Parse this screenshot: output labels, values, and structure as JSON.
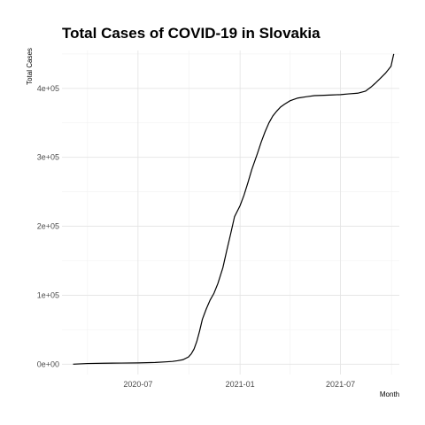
{
  "chart_data": {
    "type": "line",
    "title": "Total Cases of COVID-19 in Slovakia",
    "xlabel": "Month",
    "ylabel": "Total Cases",
    "x_type": "date",
    "xlim": [
      "2020-02-15",
      "2021-10-15"
    ],
    "ylim": [
      -15000,
      455000
    ],
    "x_ticks": [
      {
        "value": "2020-07-01",
        "label": "2020-07"
      },
      {
        "value": "2021-01-01",
        "label": "2021-01"
      },
      {
        "value": "2021-07-01",
        "label": "2021-07"
      }
    ],
    "x_minor_ticks": [
      "2020-04-01",
      "2020-10-01",
      "2021-04-01",
      "2021-10-01"
    ],
    "y_ticks": [
      {
        "value": 0,
        "label": "0e+00"
      },
      {
        "value": 100000,
        "label": "1e+05"
      },
      {
        "value": 200000,
        "label": "2e+05"
      },
      {
        "value": 300000,
        "label": "3e+05"
      },
      {
        "value": 400000,
        "label": "4e+05"
      }
    ],
    "y_minor_ticks": [
      50000,
      150000,
      250000,
      350000,
      450000
    ],
    "grid": true,
    "legend": "none",
    "series": [
      {
        "color": "#000000",
        "x": [
          "2020-03-06",
          "2020-04-01",
          "2020-05-01",
          "2020-06-01",
          "2020-07-01",
          "2020-08-01",
          "2020-08-20",
          "2020-09-01",
          "2020-09-10",
          "2020-09-20",
          "2020-09-30",
          "2020-10-05",
          "2020-10-10",
          "2020-10-15",
          "2020-10-20",
          "2020-10-25",
          "2020-11-01",
          "2020-11-08",
          "2020-11-15",
          "2020-11-22",
          "2020-12-01",
          "2020-12-08",
          "2020-12-15",
          "2020-12-22",
          "2021-01-01",
          "2021-01-08",
          "2021-01-15",
          "2021-01-22",
          "2021-02-01",
          "2021-02-08",
          "2021-02-15",
          "2021-02-22",
          "2021-03-01",
          "2021-03-08",
          "2021-03-15",
          "2021-03-22",
          "2021-04-01",
          "2021-04-15",
          "2021-05-01",
          "2021-05-15",
          "2021-06-01",
          "2021-06-15",
          "2021-07-01",
          "2021-07-15",
          "2021-08-01",
          "2021-08-15",
          "2021-08-25",
          "2021-09-01",
          "2021-09-10",
          "2021-09-20",
          "2021-09-30",
          "2021-10-05"
        ],
        "values": [
          0,
          1000,
          1400,
          1600,
          1900,
          2500,
          3400,
          4000,
          5000,
          6500,
          10500,
          15000,
          22000,
          33000,
          48000,
          65000,
          80000,
          93000,
          103000,
          117000,
          140000,
          165000,
          189000,
          214000,
          230000,
          245000,
          263000,
          282000,
          305000,
          322000,
          337000,
          350000,
          360000,
          367000,
          373000,
          377000,
          382000,
          386000,
          388000,
          389500,
          390000,
          390500,
          391000,
          392000,
          393000,
          396000,
          402000,
          407000,
          414000,
          422000,
          432000,
          450000
        ]
      }
    ]
  }
}
